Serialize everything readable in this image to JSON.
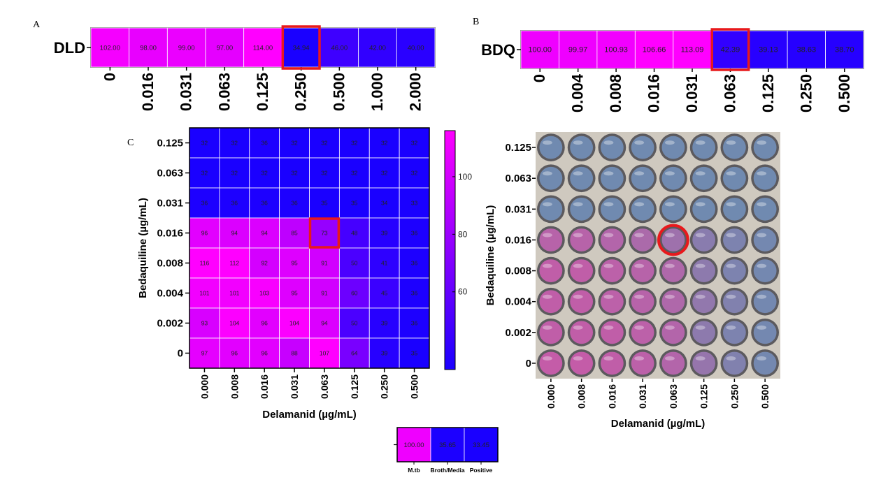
{
  "panel_letters": {
    "a": "A",
    "b": "B",
    "c": "C"
  },
  "colors": {
    "high": "#FF00FF",
    "low": "#1A00FF",
    "highlight": "#E8191C",
    "grid": "#FFFFFF"
  },
  "chart_data": [
    {
      "id": "panel-a",
      "type": "heatmap",
      "row_label": "DLD",
      "categories": [
        "0",
        "0.016",
        "0.031",
        "0.063",
        "0.125",
        "0.250",
        "0.500",
        "1.000",
        "2.000"
      ],
      "value_labels": [
        "102.00",
        "98.00",
        "99.00",
        "97.00",
        "114.00",
        "34.94",
        "46.00",
        "42.00",
        "40.00"
      ],
      "highlight_index": 5
    },
    {
      "id": "panel-b",
      "type": "heatmap",
      "row_label": "BDQ",
      "categories": [
        "0",
        "0.004",
        "0.008",
        "0.016",
        "0.031",
        "0.063",
        "0.125",
        "0.250",
        "0.500"
      ],
      "value_labels": [
        "100.00",
        "99.97",
        "100.93",
        "106.66",
        "113.09",
        "42.39",
        "39.13",
        "38.63",
        "38.70"
      ],
      "highlight_index": 5
    },
    {
      "id": "panel-c",
      "type": "heatmap",
      "xlabel": "Delamanid (µg/mL)",
      "ylabel": "Bedaquiline (µg/mL)",
      "x_categories": [
        "0.000",
        "0.008",
        "0.016",
        "0.031",
        "0.063",
        "0.125",
        "0.250",
        "0.500"
      ],
      "y_categories": [
        "0.125",
        "0.063",
        "0.031",
        "0.016",
        "0.008",
        "0.004",
        "0.002",
        "0"
      ],
      "values": [
        [
          32,
          32,
          36,
          32,
          32,
          32,
          32,
          32
        ],
        [
          32,
          32,
          32,
          32,
          32,
          32,
          32,
          32
        ],
        [
          36,
          36,
          36,
          36,
          35,
          35,
          34,
          33
        ],
        [
          96,
          94,
          94,
          85,
          73,
          48,
          39,
          36
        ],
        [
          116,
          112,
          92,
          95,
          91,
          50,
          41,
          36
        ],
        [
          101,
          101,
          103,
          95,
          91,
          60,
          45,
          36
        ],
        [
          93,
          104,
          96,
          104,
          94,
          50,
          39,
          36
        ],
        [
          97,
          96,
          96,
          88,
          107,
          64,
          39,
          35
        ]
      ],
      "highlight": {
        "row": 3,
        "col": 4
      },
      "colorbar": {
        "ticks": [
          60,
          80,
          100
        ],
        "range": [
          33,
          116
        ]
      }
    },
    {
      "id": "panel-d",
      "type": "heatmap",
      "subtype": "plate-photo",
      "xlabel": "Delamanid (µg/mL)",
      "ylabel": "Bedaquiline (µg/mL)",
      "x_categories": [
        "0.000",
        "0.008",
        "0.016",
        "0.031",
        "0.063",
        "0.125",
        "0.250",
        "0.500"
      ],
      "y_categories": [
        "0.125",
        "0.063",
        "0.031",
        "0.016",
        "0.008",
        "0.004",
        "0.002",
        "0"
      ],
      "well_tone": [
        [
          0,
          0,
          0,
          0,
          0,
          0,
          0,
          0
        ],
        [
          0,
          0,
          0,
          0,
          0,
          0,
          0,
          0
        ],
        [
          0,
          0,
          0,
          0,
          0,
          0,
          0,
          0
        ],
        [
          0.85,
          0.85,
          0.8,
          0.7,
          0.55,
          0.3,
          0.15,
          0.05
        ],
        [
          0.95,
          0.95,
          0.9,
          0.85,
          0.75,
          0.35,
          0.15,
          0.05
        ],
        [
          0.95,
          0.95,
          0.9,
          0.85,
          0.75,
          0.4,
          0.2,
          0.05
        ],
        [
          0.95,
          0.95,
          0.95,
          0.9,
          0.8,
          0.35,
          0.15,
          0.05
        ],
        [
          1,
          1,
          0.95,
          0.9,
          0.8,
          0.45,
          0.2,
          0.05
        ]
      ],
      "highlight": {
        "row": 3,
        "col": 4
      }
    },
    {
      "id": "panel-legend",
      "type": "heatmap",
      "categories": [
        "M.tb",
        "Broth/Media",
        "Positive"
      ],
      "value_labels": [
        "100.00",
        "35.65",
        "33.45"
      ],
      "values": [
        100,
        35.65,
        33.45
      ]
    }
  ]
}
